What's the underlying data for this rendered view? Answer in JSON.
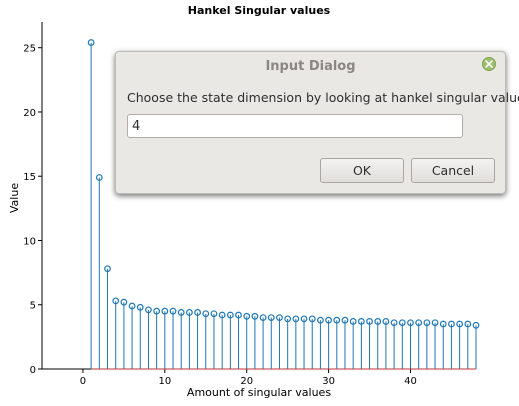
{
  "chart_data": {
    "type": "stem",
    "title": "Hankel Singular values",
    "xlabel": "Amount of singular values",
    "ylabel": "Value",
    "xlim": [
      -5,
      48
    ],
    "ylim": [
      0,
      27
    ],
    "xticks": [
      0,
      10,
      20,
      30,
      40
    ],
    "yticks": [
      0,
      5,
      10,
      15,
      20,
      25
    ],
    "x": [
      1,
      2,
      3,
      4,
      5,
      6,
      7,
      8,
      9,
      10,
      11,
      12,
      13,
      14,
      15,
      16,
      17,
      18,
      19,
      20,
      21,
      22,
      23,
      24,
      25,
      26,
      27,
      28,
      29,
      30,
      31,
      32,
      33,
      34,
      35,
      36,
      37,
      38,
      39,
      40,
      41,
      42,
      43,
      44,
      45,
      46,
      47,
      48
    ],
    "values": [
      25.4,
      14.9,
      7.8,
      5.3,
      5.2,
      4.9,
      4.8,
      4.6,
      4.5,
      4.5,
      4.5,
      4.4,
      4.4,
      4.4,
      4.3,
      4.3,
      4.2,
      4.2,
      4.2,
      4.1,
      4.1,
      4.0,
      4.0,
      4.0,
      3.9,
      3.9,
      3.9,
      3.9,
      3.8,
      3.8,
      3.8,
      3.8,
      3.7,
      3.7,
      3.7,
      3.7,
      3.7,
      3.6,
      3.6,
      3.6,
      3.6,
      3.6,
      3.6,
      3.5,
      3.5,
      3.5,
      3.5,
      3.4
    ],
    "color": "#1f77b4"
  },
  "dialog": {
    "title": "Input Dialog",
    "prompt": "Choose the state dimension by looking at hankel singular values:",
    "value": "4",
    "ok_label": "OK",
    "cancel_label": "Cancel",
    "close_icon": "close-icon",
    "close_color": "#9bbf6d"
  }
}
